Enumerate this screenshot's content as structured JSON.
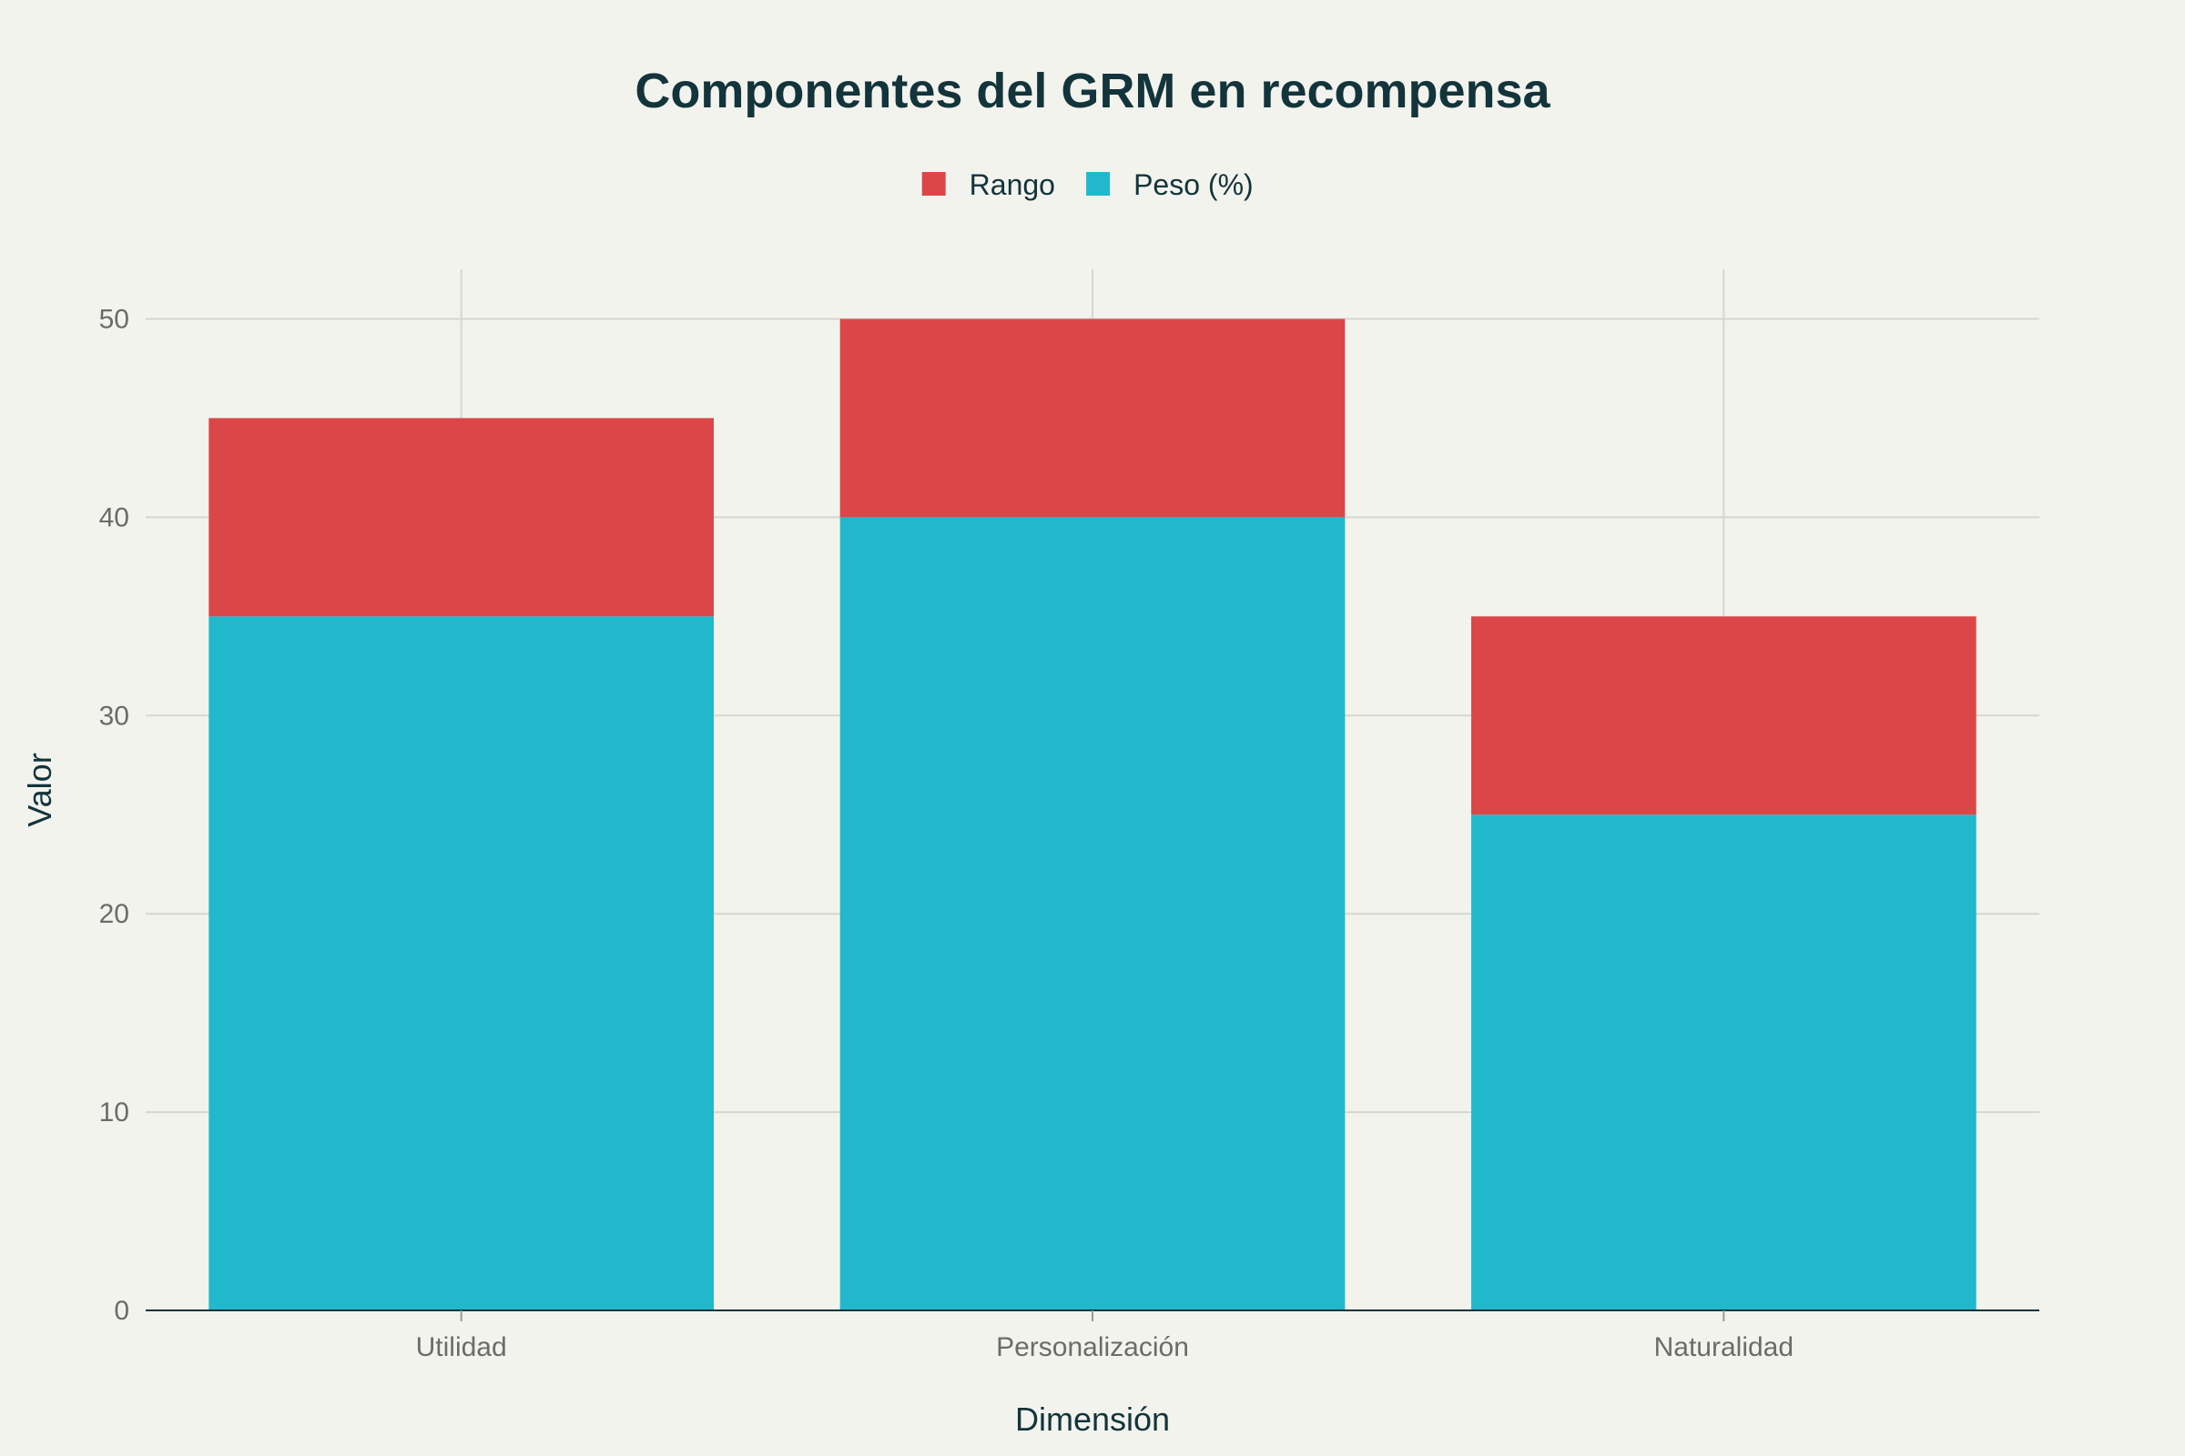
{
  "chart_data": {
    "type": "bar",
    "stacked": true,
    "title": "Componentes del GRM en recompensa",
    "xlabel": "Dimensión",
    "ylabel": "Valor",
    "categories": [
      "Utilidad",
      "Personalización",
      "Naturalidad"
    ],
    "series": [
      {
        "name": "Peso (%)",
        "values": [
          35,
          40,
          25
        ],
        "color": "#21b8cc"
      },
      {
        "name": "Rango",
        "values": [
          10,
          10,
          10
        ],
        "color": "#db4748"
      }
    ],
    "legend_order": [
      "Rango",
      "Peso (%)"
    ],
    "legend_position": "top-center",
    "ylim": [
      0,
      52.5
    ],
    "yticks": [
      0,
      10,
      20,
      30,
      40,
      50
    ],
    "grid": true
  }
}
